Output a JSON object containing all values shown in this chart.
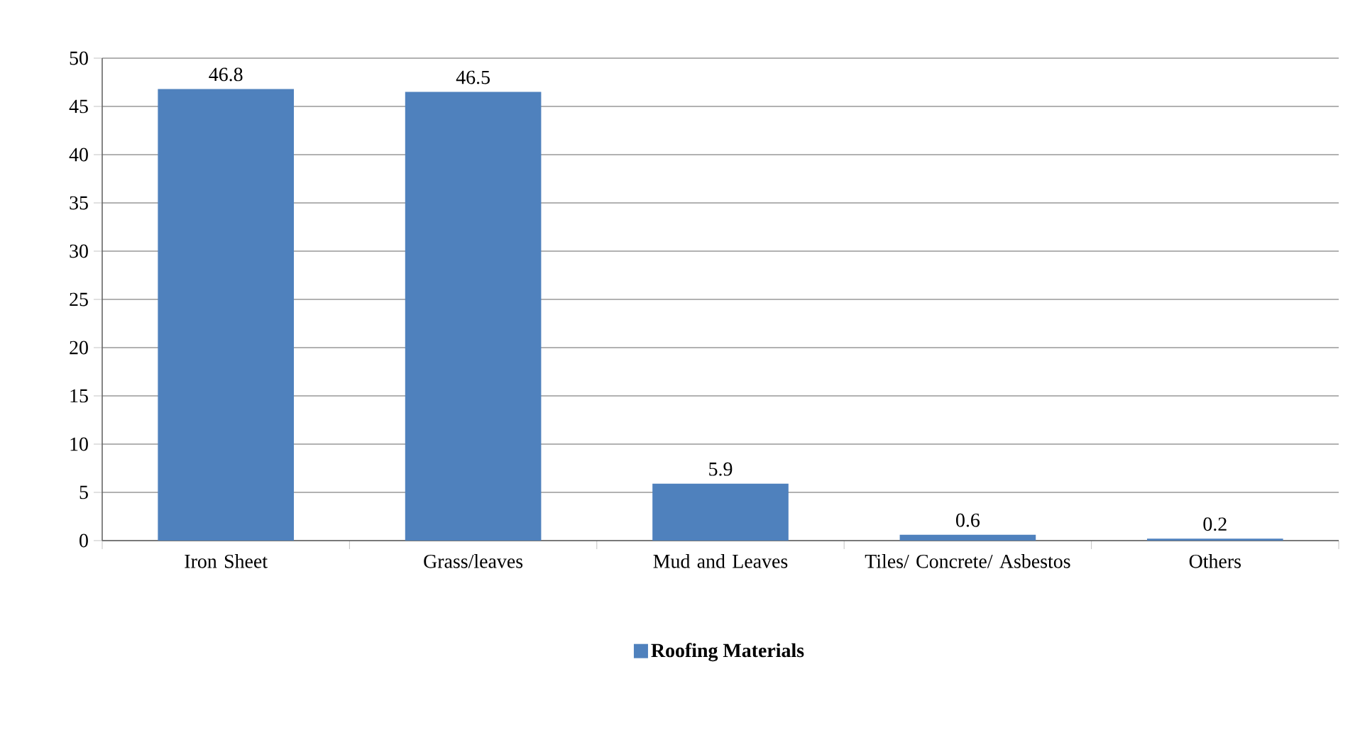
{
  "chart_data": {
    "type": "bar",
    "categories": [
      "Iron Sheet",
      "Grass/leaves",
      "Mud and Leaves",
      "Tiles/ Concrete/ Asbestos",
      "Others"
    ],
    "series": [
      {
        "name": "Roofing Materials",
        "color": "#4f81bd",
        "values": [
          46.8,
          46.5,
          5.9,
          0.6,
          0.2
        ]
      }
    ],
    "ylim": [
      0,
      50
    ],
    "yticks": [
      0,
      5,
      10,
      15,
      20,
      25,
      30,
      35,
      40,
      45,
      50
    ],
    "grid": "y",
    "data_labels": true,
    "legend": "bottom"
  }
}
